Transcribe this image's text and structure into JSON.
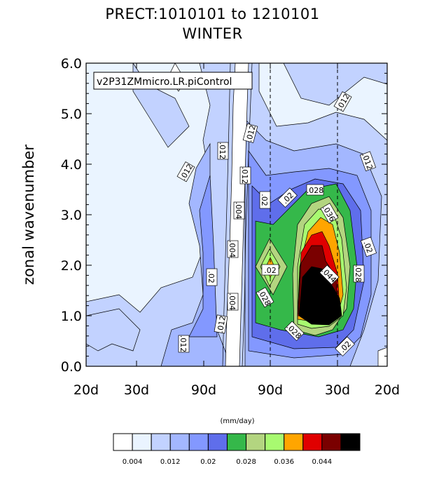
{
  "chart_data": {
    "type": "contour",
    "title": "PREC T:1010101 to 1210101",
    "title_display": "PRECT:1010101 to 1210101",
    "subtitle": "WINTER",
    "xlabel": "",
    "ylabel": "zonal wavenumber",
    "x_tick_labels": [
      "20d",
      "30d",
      "90d",
      "90d",
      "30d",
      "20d"
    ],
    "y_tick_labels": [
      "0.0",
      "1.0",
      "2.0",
      "3.0",
      "4.0",
      "5.0",
      "6.0"
    ],
    "ylim": [
      0,
      6
    ],
    "legend": "v2P31ZMmicro.LR.piControl",
    "units": "(mm/day)",
    "contour_levels": [
      0.004,
      0.008,
      0.012,
      0.016,
      0.02,
      0.024,
      0.028,
      0.032,
      0.036,
      0.04,
      0.044,
      0.048
    ],
    "colorbar_labels": [
      "0.004",
      "0.012",
      "0.02",
      "0.028",
      "0.036",
      "0.044"
    ],
    "colors": [
      "#ffffff",
      "#eaf4ff",
      "#c2d2ff",
      "#a3b7ff",
      "#8398ff",
      "#5f6eeb",
      "#35b84a",
      "#b3d580",
      "#a8fa70",
      "#ffa500",
      "#e00000",
      "#7a0000",
      "#000000"
    ],
    "contour_labels": [
      ".012",
      ".004",
      ".004",
      ".004",
      ".012",
      ".012",
      ".012",
      ".012",
      ".02",
      ".02",
      ".02",
      ".028",
      ".028",
      ".028",
      ".036",
      ".044",
      ".02",
      ".012",
      ".012",
      ".02",
      ".028",
      ".012",
      ".02"
    ]
  }
}
